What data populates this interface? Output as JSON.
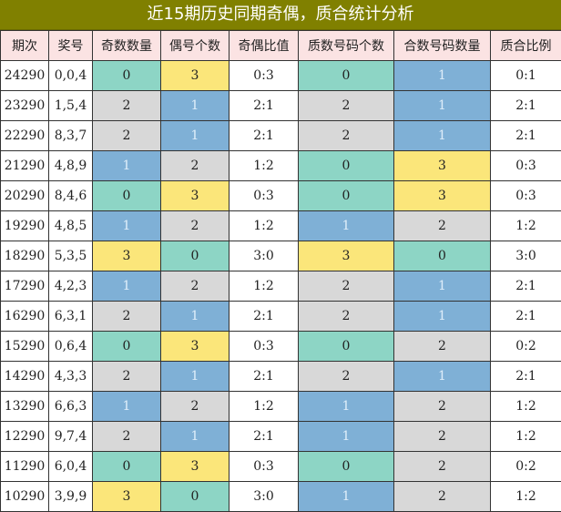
{
  "title": "近15期历史同期奇偶，质合统计分析",
  "headers": [
    "期次",
    "奖号",
    "奇数数量",
    "偶号个数",
    "奇偶比值",
    "质数号码个数",
    "合数号码数量",
    "质合比例"
  ],
  "colors": {
    "green": "#8dd5c5",
    "yellow": "#fbe67a",
    "gray": "#d8d8d8",
    "blue": "#7fb0d6",
    "white": "#ffffff"
  },
  "rows": [
    {
      "period": "24290",
      "number": "0,0,4",
      "odd": "0",
      "even": "3",
      "oe_ratio": "0:3",
      "prime": "0",
      "composite": "1",
      "pc_ratio": "0:1"
    },
    {
      "period": "23290",
      "number": "1,5,4",
      "odd": "2",
      "even": "1",
      "oe_ratio": "2:1",
      "prime": "2",
      "composite": "1",
      "pc_ratio": "2:1"
    },
    {
      "period": "22290",
      "number": "8,3,7",
      "odd": "2",
      "even": "1",
      "oe_ratio": "2:1",
      "prime": "2",
      "composite": "1",
      "pc_ratio": "2:1"
    },
    {
      "period": "21290",
      "number": "4,8,9",
      "odd": "1",
      "even": "2",
      "oe_ratio": "1:2",
      "prime": "0",
      "composite": "3",
      "pc_ratio": "0:3"
    },
    {
      "period": "20290",
      "number": "8,4,6",
      "odd": "0",
      "even": "3",
      "oe_ratio": "0:3",
      "prime": "0",
      "composite": "3",
      "pc_ratio": "0:3"
    },
    {
      "period": "19290",
      "number": "4,8,5",
      "odd": "1",
      "even": "2",
      "oe_ratio": "1:2",
      "prime": "1",
      "composite": "2",
      "pc_ratio": "1:2"
    },
    {
      "period": "18290",
      "number": "5,3,5",
      "odd": "3",
      "even": "0",
      "oe_ratio": "3:0",
      "prime": "3",
      "composite": "0",
      "pc_ratio": "3:0"
    },
    {
      "period": "17290",
      "number": "4,2,3",
      "odd": "1",
      "even": "2",
      "oe_ratio": "1:2",
      "prime": "2",
      "composite": "1",
      "pc_ratio": "2:1"
    },
    {
      "period": "16290",
      "number": "6,3,1",
      "odd": "2",
      "even": "1",
      "oe_ratio": "2:1",
      "prime": "2",
      "composite": "1",
      "pc_ratio": "2:1"
    },
    {
      "period": "15290",
      "number": "0,6,4",
      "odd": "0",
      "even": "3",
      "oe_ratio": "0:3",
      "prime": "0",
      "composite": "2",
      "pc_ratio": "0:2"
    },
    {
      "period": "14290",
      "number": "4,3,3",
      "odd": "2",
      "even": "1",
      "oe_ratio": "2:1",
      "prime": "2",
      "composite": "1",
      "pc_ratio": "2:1"
    },
    {
      "period": "13290",
      "number": "6,6,3",
      "odd": "1",
      "even": "2",
      "oe_ratio": "1:2",
      "prime": "1",
      "composite": "2",
      "pc_ratio": "1:2"
    },
    {
      "period": "12290",
      "number": "9,7,4",
      "odd": "2",
      "even": "1",
      "oe_ratio": "2:1",
      "prime": "1",
      "composite": "2",
      "pc_ratio": "1:2"
    },
    {
      "period": "11290",
      "number": "6,0,4",
      "odd": "0",
      "even": "3",
      "oe_ratio": "0:3",
      "prime": "0",
      "composite": "2",
      "pc_ratio": "0:2"
    },
    {
      "period": "10290",
      "number": "3,9,9",
      "odd": "3",
      "even": "0",
      "oe_ratio": "3:0",
      "prime": "1",
      "composite": "2",
      "pc_ratio": "1:2"
    }
  ]
}
